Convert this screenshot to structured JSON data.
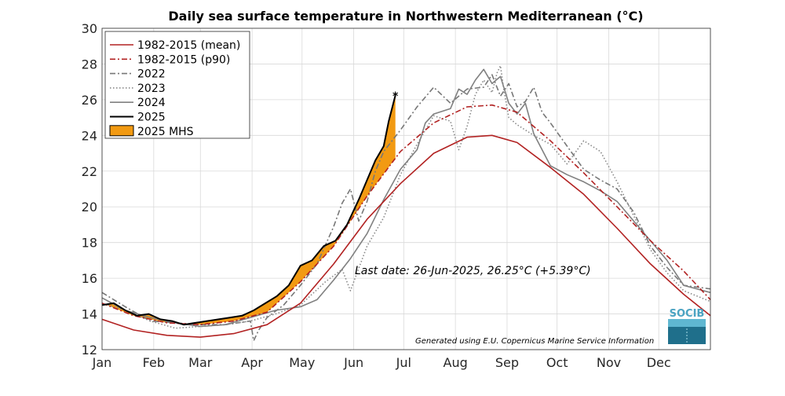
{
  "chart_data": {
    "type": "line",
    "title": "Daily sea surface temperature in Northwestern Mediterranean (°C)",
    "xlabel": "",
    "ylabel": "",
    "x_ticks": [
      "Jan",
      "Feb",
      "Mar",
      "Apr",
      "May",
      "Jun",
      "Jul",
      "Aug",
      "Sep",
      "Oct",
      "Nov",
      "Dec"
    ],
    "x_unit": "day of year",
    "xlim": [
      1,
      366
    ],
    "ylim": [
      12,
      30
    ],
    "y_ticks": [
      12,
      14,
      16,
      18,
      20,
      22,
      24,
      26,
      28,
      30
    ],
    "grid": true,
    "legend_position": "top-left",
    "series": [
      {
        "name": "1982-2015 (mean)",
        "style": "solid",
        "color": "#b22222",
        "x": [
          1,
          20,
          40,
          60,
          80,
          100,
          120,
          140,
          160,
          180,
          200,
          220,
          235,
          250,
          270,
          290,
          310,
          330,
          350,
          366
        ],
        "y": [
          13.7,
          13.1,
          12.8,
          12.7,
          12.9,
          13.4,
          14.6,
          16.8,
          19.3,
          21.3,
          23.0,
          23.9,
          24.0,
          23.6,
          22.2,
          20.7,
          18.8,
          16.8,
          15.1,
          13.9
        ]
      },
      {
        "name": "1982-2015 (p90)",
        "style": "dashdot",
        "color": "#b22222",
        "x": [
          1,
          20,
          40,
          60,
          80,
          100,
          120,
          140,
          160,
          180,
          200,
          220,
          235,
          250,
          270,
          290,
          310,
          330,
          350,
          366
        ],
        "y": [
          14.6,
          13.9,
          13.5,
          13.4,
          13.6,
          14.1,
          15.8,
          17.8,
          20.6,
          23.1,
          24.7,
          25.6,
          25.7,
          25.3,
          23.7,
          21.9,
          20.0,
          18.1,
          16.4,
          14.8
        ]
      },
      {
        "name": "2022",
        "style": "dashdot",
        "color": "#777777",
        "x": [
          1,
          15,
          30,
          45,
          60,
          75,
          90,
          92,
          95,
          100,
          110,
          120,
          130,
          140,
          145,
          150,
          155,
          160,
          165,
          170,
          180,
          190,
          200,
          210,
          220,
          230,
          235,
          240,
          245,
          250,
          255,
          260,
          265,
          270,
          280,
          290,
          300,
          310,
          320,
          330,
          340,
          350,
          366
        ],
        "y": [
          15.2,
          14.4,
          13.6,
          13.5,
          13.4,
          13.4,
          13.6,
          12.5,
          13.1,
          13.8,
          14.5,
          15.6,
          16.8,
          18.9,
          20.2,
          21.0,
          19.2,
          20.3,
          22.0,
          23.1,
          24.3,
          25.6,
          26.7,
          25.8,
          26.6,
          26.7,
          27.4,
          26.2,
          26.9,
          25.6,
          25.9,
          26.7,
          25.3,
          24.7,
          23.4,
          22.1,
          21.5,
          21.0,
          19.7,
          17.8,
          16.6,
          15.6,
          15.4
        ]
      },
      {
        "name": "2023",
        "style": "dotted",
        "color": "#888888",
        "x": [
          1,
          15,
          30,
          45,
          60,
          75,
          90,
          105,
          120,
          135,
          145,
          150,
          160,
          170,
          180,
          190,
          200,
          210,
          215,
          220,
          225,
          230,
          235,
          238,
          240,
          242,
          245,
          250,
          260,
          270,
          280,
          290,
          300,
          310,
          320,
          330,
          340,
          350,
          366
        ],
        "y": [
          14.6,
          14.2,
          13.6,
          13.2,
          13.3,
          13.4,
          13.6,
          14.0,
          14.5,
          15.8,
          16.5,
          15.3,
          17.8,
          19.4,
          21.8,
          23.5,
          25.1,
          24.8,
          23.2,
          24.5,
          26.3,
          27.1,
          26.4,
          27.5,
          27.9,
          26.6,
          25.0,
          24.6,
          24.0,
          23.5,
          22.4,
          23.7,
          23.1,
          21.4,
          19.5,
          17.6,
          16.3,
          15.3,
          14.7
        ]
      },
      {
        "name": "2024",
        "style": "solid",
        "color": "#808080",
        "x": [
          1,
          15,
          30,
          45,
          60,
          75,
          90,
          105,
          120,
          130,
          140,
          150,
          160,
          170,
          180,
          190,
          195,
          200,
          210,
          215,
          220,
          225,
          230,
          235,
          240,
          245,
          250,
          255,
          260,
          270,
          280,
          290,
          300,
          310,
          320,
          330,
          340,
          350,
          366
        ],
        "y": [
          14.9,
          14.2,
          13.8,
          13.5,
          13.3,
          13.4,
          13.8,
          14.2,
          14.4,
          14.8,
          15.9,
          17.1,
          18.5,
          20.4,
          22.1,
          23.2,
          24.7,
          25.2,
          25.5,
          26.6,
          26.3,
          27.1,
          27.7,
          26.9,
          27.3,
          25.8,
          25.2,
          25.8,
          24.1,
          22.3,
          21.8,
          21.4,
          20.9,
          20.3,
          19.2,
          18.1,
          17.0,
          15.6,
          15.2
        ]
      },
      {
        "name": "2025",
        "style": "solid",
        "color": "#000000",
        "x": [
          1,
          8,
          15,
          22,
          29,
          36,
          43,
          50,
          57,
          64,
          71,
          78,
          85,
          92,
          99,
          106,
          113,
          120,
          127,
          134,
          141,
          148,
          155,
          160,
          165,
          170,
          173,
          177
        ],
        "y": [
          14.5,
          14.6,
          14.2,
          13.9,
          14.0,
          13.7,
          13.6,
          13.4,
          13.5,
          13.6,
          13.7,
          13.8,
          13.9,
          14.2,
          14.6,
          15.0,
          15.6,
          16.7,
          17.0,
          17.8,
          18.1,
          19.0,
          20.4,
          21.5,
          22.6,
          23.4,
          24.8,
          26.25
        ]
      }
    ],
    "mhs_fill": {
      "name": "2025 MHS",
      "color": "#f29a12",
      "between": [
        "1982-2015 (p90)",
        "2025"
      ]
    },
    "annotations": {
      "last_date": "Last date: 26-Jun-2025, 26.25°C (+5.39°C)",
      "credit": "Generated using E.U. Copernicus Marine Service Information",
      "logo": "SOCIB"
    }
  }
}
